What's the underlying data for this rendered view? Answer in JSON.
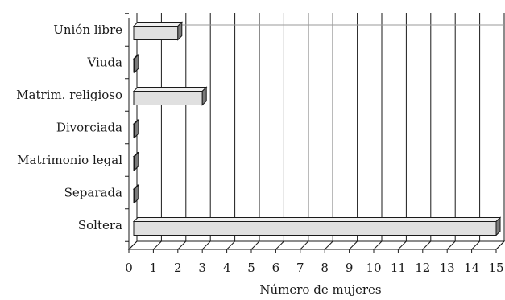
{
  "chart_data": {
    "type": "bar",
    "orientation": "horizontal",
    "style": "3d",
    "categories": [
      "Unión libre",
      "Viuda",
      "Matrim. religioso",
      "Divorciada",
      "Matrimonio legal",
      "Separada",
      "Soltera"
    ],
    "values": [
      2,
      0,
      3,
      0,
      0,
      0,
      15
    ],
    "title": "",
    "xlabel": "Número de mujeres",
    "ylabel": "",
    "xlim": [
      0,
      15
    ],
    "xticks": [
      "0",
      "1",
      "2",
      "3",
      "4",
      "5",
      "6",
      "7",
      "8",
      "9",
      "10",
      "11",
      "12",
      "13",
      "14",
      "15"
    ],
    "grid": "vertical",
    "legend": "none",
    "colors": {
      "bar_front": "#e0e0e0",
      "bar_top": "#f0f0f0",
      "bar_side": "#7a7a7a",
      "grid": "#1a1a1a",
      "gridline_light": "#9a9a9a",
      "axis": "#1a1a1a"
    }
  }
}
